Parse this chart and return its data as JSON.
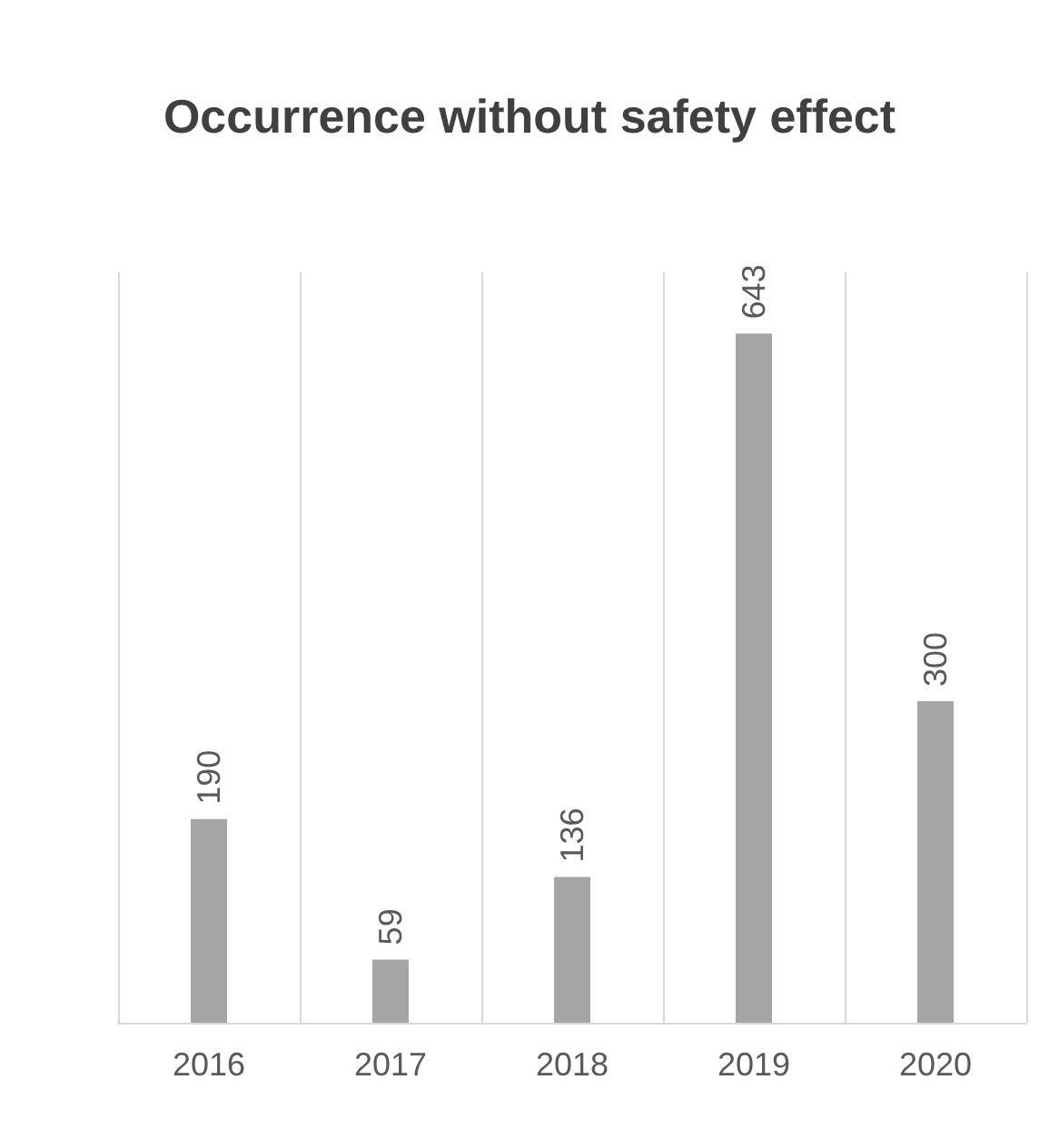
{
  "chart_data": {
    "type": "bar",
    "title": "Occurrence without safety effect",
    "categories": [
      "2016",
      "2017",
      "2018",
      "2019",
      "2020"
    ],
    "values": [
      190,
      59,
      136,
      643,
      300
    ],
    "color": "#a5a5a5",
    "data_labels": true,
    "grid": "x"
  }
}
